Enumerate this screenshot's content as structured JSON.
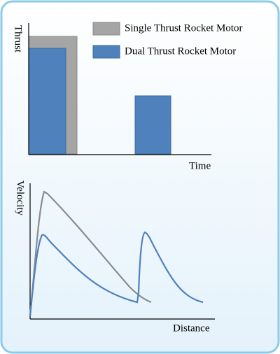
{
  "thrust_chart": {
    "y_label": "Thrust",
    "x_label": "Time",
    "legend": [
      "Single Thrust Rocket Motor",
      "Dual Thrust Rocket Motor"
    ]
  },
  "velocity_chart": {
    "y_label": "Velocity",
    "x_label": "Distance"
  }
}
